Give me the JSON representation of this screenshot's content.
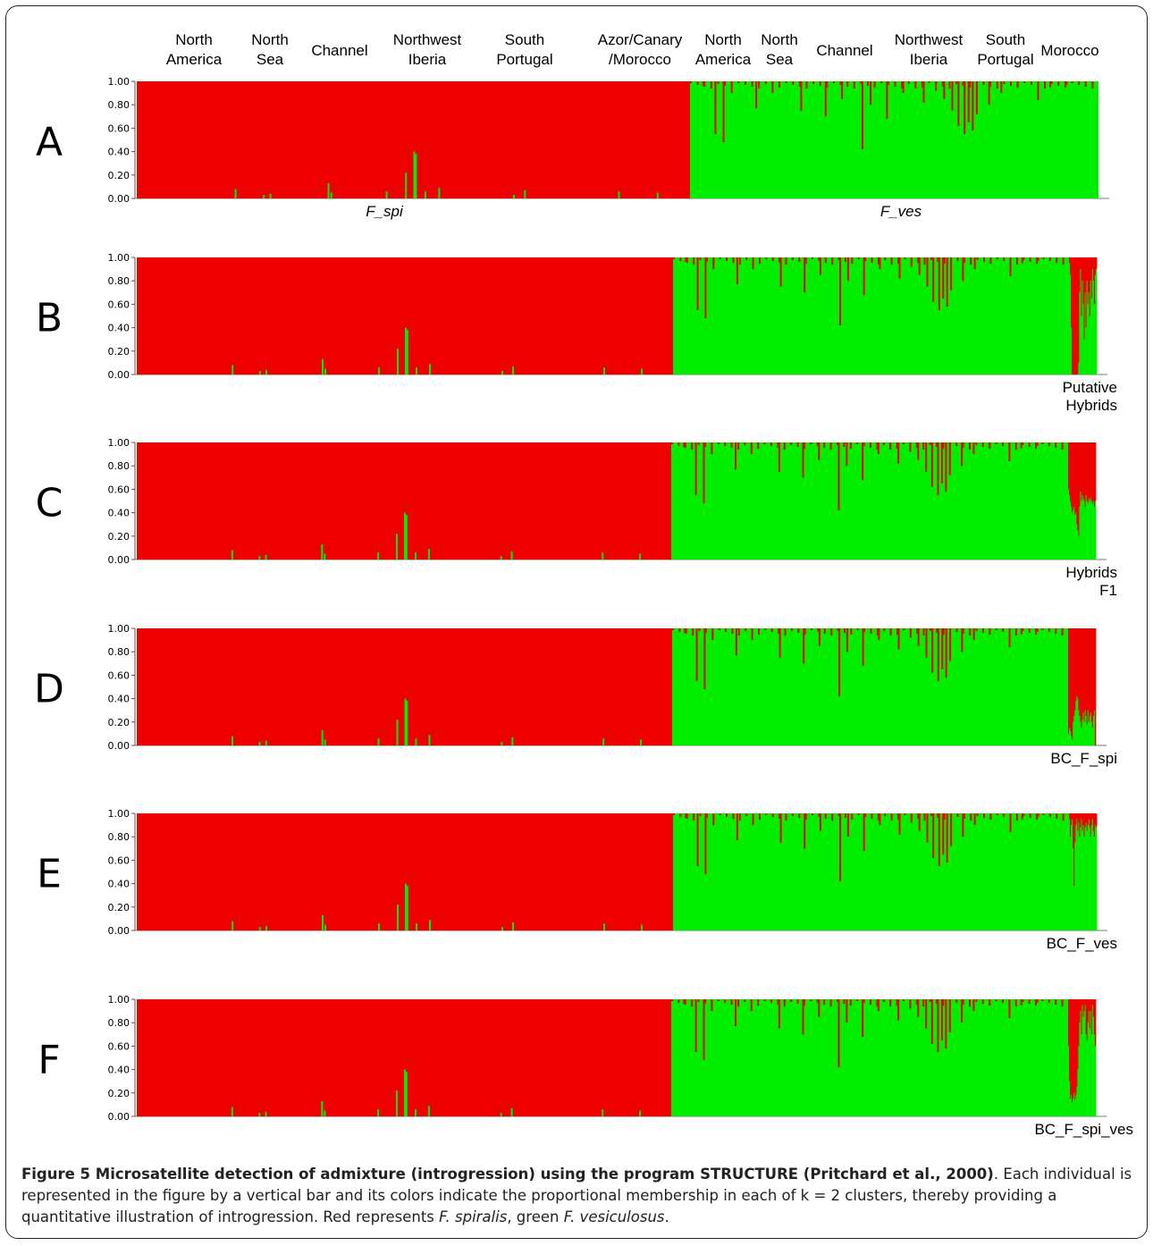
{
  "population_labels": [
    {
      "text": [
        "North",
        "America"
      ],
      "cx": 217
    },
    {
      "text": [
        "North",
        "Sea"
      ],
      "cx": 302
    },
    {
      "text": [
        "Channel"
      ],
      "cx": 380
    },
    {
      "text": [
        "Northwest",
        "Iberia"
      ],
      "cx": 478
    },
    {
      "text": [
        "South",
        "Portugal"
      ],
      "cx": 587
    },
    {
      "text": [
        "Azor/Canary",
        "/Morocco"
      ],
      "cx": 716
    },
    {
      "text": [
        "North",
        "America"
      ],
      "cx": 809
    },
    {
      "text": [
        "North",
        "Sea"
      ],
      "cx": 872
    },
    {
      "text": [
        "Channel"
      ],
      "cx": 945
    },
    {
      "text": [
        "Northwest",
        "Iberia"
      ],
      "cx": 1039
    },
    {
      "text": [
        "South",
        "Portugal"
      ],
      "cx": 1125
    },
    {
      "text": [
        "Morocco"
      ],
      "cx": 1197
    }
  ],
  "chart_data": {
    "type": "bar",
    "description_axis": "membership proportion",
    "yticks": [
      "1.00",
      "0.80",
      "0.60",
      "0.40",
      "0.20",
      "0.00"
    ],
    "ylim": [
      0,
      1
    ],
    "colors": {
      "F_spi_cluster": "#ee0000",
      "F_ves_cluster": "#00ee00"
    },
    "panels": [
      {
        "letter": "A",
        "species_left": "F_spi",
        "species_right": "F_ves",
        "group_label": [],
        "hybrid_pattern": "none"
      },
      {
        "letter": "B",
        "species_left": "",
        "species_right": "",
        "group_label": [
          "Putative",
          "Hybrids"
        ],
        "hybrid_pattern": "putative"
      },
      {
        "letter": "C",
        "species_left": "",
        "species_right": "",
        "group_label": [
          "Hybrids",
          "F1"
        ],
        "hybrid_pattern": "f1"
      },
      {
        "letter": "D",
        "species_left": "",
        "species_right": "",
        "group_label": [
          "BC_F_spi"
        ],
        "hybrid_pattern": "bc_spi"
      },
      {
        "letter": "E",
        "species_left": "",
        "species_right": "",
        "group_label": [
          "BC_F_ves"
        ],
        "hybrid_pattern": "bc_ves"
      },
      {
        "letter": "F",
        "species_left": "",
        "species_right": "",
        "group_label": [
          "BC_F_spi_ves"
        ],
        "hybrid_pattern": "bc_spi_ves"
      }
    ],
    "left_block_spikes_green": [
      {
        "rel": 0.177,
        "v": 0.08
      },
      {
        "rel": 0.228,
        "v": 0.03
      },
      {
        "rel": 0.24,
        "v": 0.04
      },
      {
        "rel": 0.345,
        "v": 0.13
      },
      {
        "rel": 0.35,
        "v": 0.05
      },
      {
        "rel": 0.45,
        "v": 0.06
      },
      {
        "rel": 0.485,
        "v": 0.22
      },
      {
        "rel": 0.5,
        "v": 0.4
      },
      {
        "rel": 0.503,
        "v": 0.38
      },
      {
        "rel": 0.52,
        "v": 0.06
      },
      {
        "rel": 0.545,
        "v": 0.09
      },
      {
        "rel": 0.68,
        "v": 0.03
      },
      {
        "rel": 0.7,
        "v": 0.07
      },
      {
        "rel": 0.87,
        "v": 0.06
      },
      {
        "rel": 0.94,
        "v": 0.05
      }
    ],
    "right_block_spikes_red": [
      {
        "rel": 0.03,
        "v": 0.04
      },
      {
        "rel": 0.06,
        "v": 0.45
      },
      {
        "rel": 0.08,
        "v": 0.52
      },
      {
        "rel": 0.1,
        "v": 0.1
      },
      {
        "rel": 0.16,
        "v": 0.23
      },
      {
        "rel": 0.2,
        "v": 0.1
      },
      {
        "rel": 0.27,
        "v": 0.25
      },
      {
        "rel": 0.33,
        "v": 0.3
      },
      {
        "rel": 0.37,
        "v": 0.15
      },
      {
        "rel": 0.42,
        "v": 0.58
      },
      {
        "rel": 0.44,
        "v": 0.2
      },
      {
        "rel": 0.48,
        "v": 0.32
      },
      {
        "rel": 0.52,
        "v": 0.1
      },
      {
        "rel": 0.55,
        "v": 0.06
      },
      {
        "rel": 0.57,
        "v": 0.18
      },
      {
        "rel": 0.57,
        "v": 0.18
      },
      {
        "rel": 0.6,
        "v": 0.08
      },
      {
        "rel": 0.62,
        "v": 0.15
      },
      {
        "rel": 0.64,
        "v": 0.25
      },
      {
        "rel": 0.655,
        "v": 0.38
      },
      {
        "rel": 0.67,
        "v": 0.45
      },
      {
        "rel": 0.68,
        "v": 0.35
      },
      {
        "rel": 0.69,
        "v": 0.42
      },
      {
        "rel": 0.7,
        "v": 0.28
      },
      {
        "rel": 0.73,
        "v": 0.2
      },
      {
        "rel": 0.76,
        "v": 0.1
      },
      {
        "rel": 0.8,
        "v": 0.05
      },
      {
        "rel": 0.85,
        "v": 0.16
      },
      {
        "rel": 0.88,
        "v": 0.05
      },
      {
        "rel": 0.92,
        "v": 0.03
      }
    ]
  },
  "caption": {
    "bold": "Figure 5 Microsatellite detection of admixture (introgression) using the program STRUCTURE (Pritchard et al., 2000)",
    "text1": ". Each individual is represented in the figure by a vertical bar and its colors indicate the proportional membership in each of k = 2 clusters, thereby providing a quantitative illustration of introgression. Red represents ",
    "italic1": "F. spiralis",
    "text2": ", green ",
    "italic2": "F. vesiculosus",
    "text3": "."
  }
}
